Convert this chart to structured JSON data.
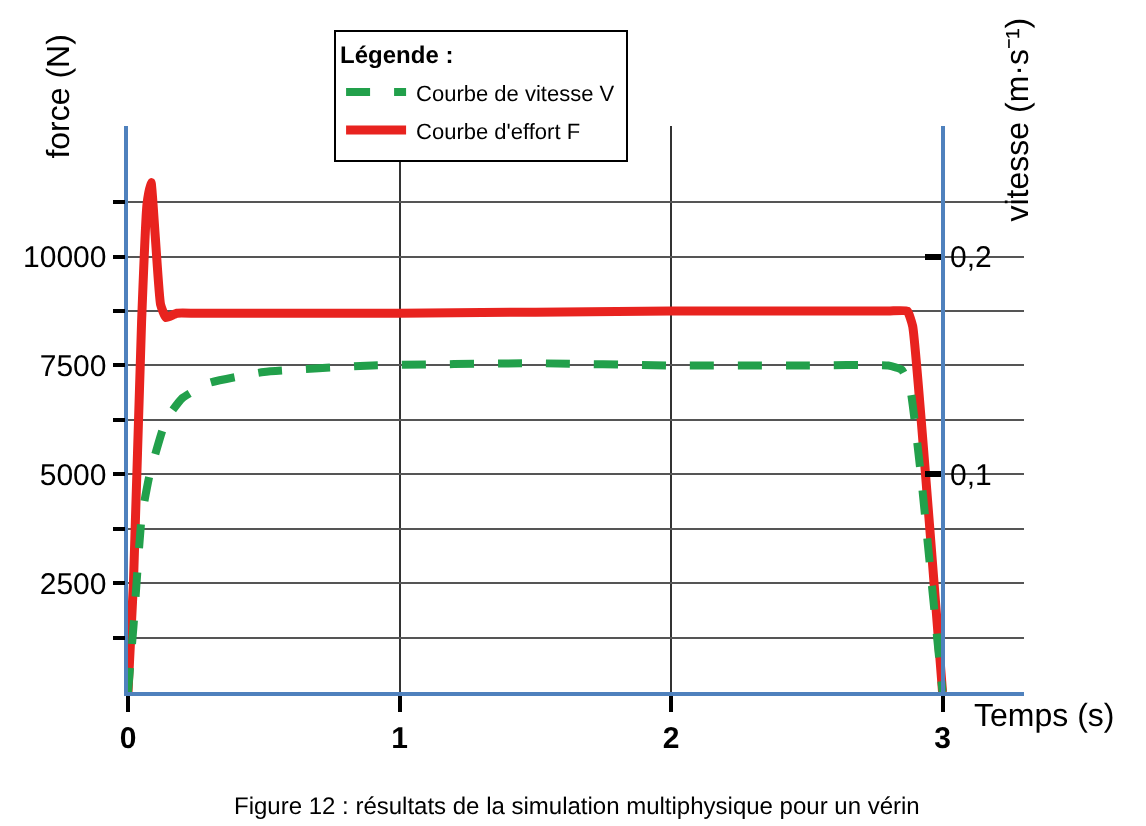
{
  "chart_data": {
    "type": "line",
    "xlabel": "Temps (s)",
    "ylabel": "force (N)",
    "y2label": "vitesse (m·s⁻¹)",
    "legend_title": "Légende :",
    "annotations": [
      "Figure 12 : résultats de la simulation multiphysique pour un vérin"
    ],
    "series": [
      {
        "name": "Courbe de vitesse V",
        "color": "#22a04b",
        "line_style": "dashed",
        "axis": "y2",
        "x": [
          0,
          0.02,
          0.05,
          0.08,
          0.14,
          0.2,
          0.3,
          0.5,
          0.9,
          1.5,
          2.0,
          2.5,
          2.8,
          2.85,
          2.88,
          2.92,
          2.96,
          3.0
        ],
        "values": [
          0,
          0.03,
          0.08,
          0.1,
          0.125,
          0.135,
          0.142,
          0.147,
          0.15,
          0.151,
          0.15,
          0.15,
          0.15,
          0.148,
          0.14,
          0.1,
          0.05,
          0
        ]
      },
      {
        "name": "Courbe d'effort F",
        "color": "#e8231f",
        "line_style": "solid",
        "x": [
          0,
          0.02,
          0.05,
          0.07,
          0.085,
          0.1,
          0.12,
          0.14,
          0.18,
          0.25,
          1.0,
          2.0,
          2.8,
          2.87,
          2.89,
          2.95,
          3.0
        ],
        "values": [
          0,
          2500,
          8500,
          11200,
          11700,
          10500,
          8900,
          8600,
          8700,
          8700,
          8700,
          8750,
          8750,
          8750,
          8400,
          4000,
          0
        ]
      }
    ],
    "xlim": [
      0,
      3.3
    ],
    "xticks": [
      0,
      1,
      2,
      3
    ],
    "ylim": [
      0,
      13000
    ],
    "yticks": [
      {
        "value": 1250,
        "label": null
      },
      2500,
      {
        "value": 3750,
        "label": null
      },
      5000,
      {
        "value": 6250,
        "label": null
      },
      7500,
      {
        "value": 8750,
        "label": null
      },
      10000,
      {
        "value": 11250,
        "label": null
      }
    ],
    "y2lim": [
      0,
      0.26
    ],
    "y2ticks": [
      {
        "value": 0.1,
        "label": "0,1"
      },
      {
        "value": 0.2,
        "label": "0,2"
      }
    ],
    "grid": true,
    "legend": "top"
  }
}
